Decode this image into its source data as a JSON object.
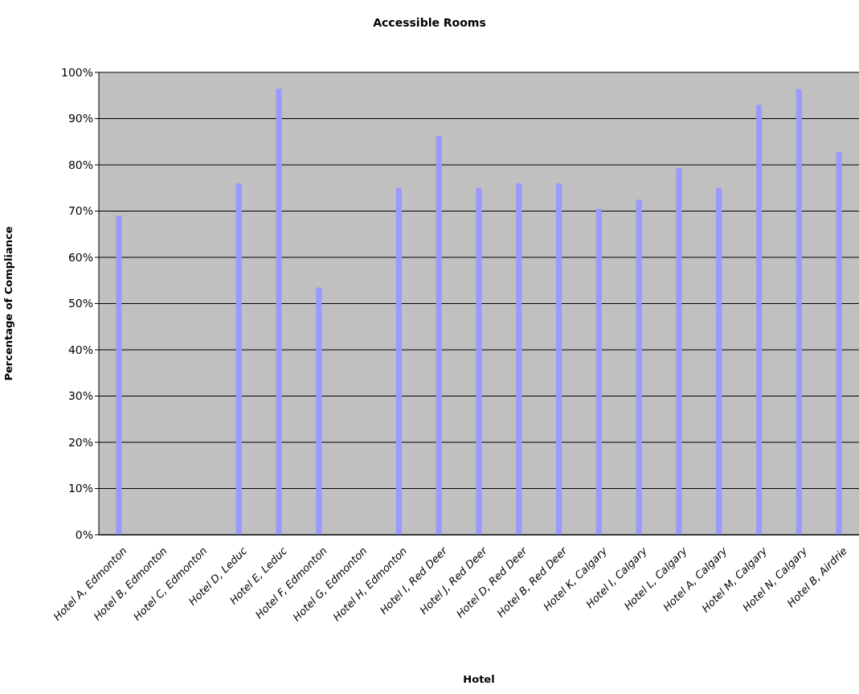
{
  "chart_data": {
    "type": "bar",
    "title": "Accessible Rooms",
    "xlabel": "Hotel",
    "ylabel": "Percentage of Compliance",
    "categories": [
      "Hotel A, Edmonton",
      "Hotel B, Edmonton",
      "Hotel C, Edmonton",
      "Hotel D, Leduc",
      "Hotel E, Leduc",
      "Hotel F, Edmonton",
      "Hotel G, Edmonton",
      "Hotel H, Edmonton",
      "Hotel I, Red Deer",
      "Hotel J, Red Deer",
      "Hotel D, Red Deer",
      "Hotel B, Red Deer",
      "Hotel K, Calgary",
      "Hotel I, Calgary",
      "Hotel L, Calgary",
      "Hotel A, Calgary",
      "Hotel M, Calgary",
      "Hotel N, Calgary",
      "Hotel B, Airdrie"
    ],
    "values": [
      69,
      0,
      0,
      76,
      96.5,
      53.5,
      0,
      75,
      86.3,
      75,
      76,
      76,
      70.5,
      72.5,
      79.3,
      75,
      93,
      96.4,
      82.8
    ],
    "color": "#9999ff",
    "ylim": [
      0,
      100
    ],
    "yticks": [
      {
        "value": 0,
        "label": "0%"
      },
      {
        "value": 10,
        "label": "10%"
      },
      {
        "value": 20,
        "label": "20%"
      },
      {
        "value": 30,
        "label": "30%"
      },
      {
        "value": 40,
        "label": "40%"
      },
      {
        "value": 50,
        "label": "50%"
      },
      {
        "value": 60,
        "label": "60%"
      },
      {
        "value": 70,
        "label": "70%"
      },
      {
        "value": 80,
        "label": "80%"
      },
      {
        "value": 90,
        "label": "90%"
      },
      {
        "value": 100,
        "label": "100%"
      }
    ],
    "grid": "y",
    "legend": false
  }
}
